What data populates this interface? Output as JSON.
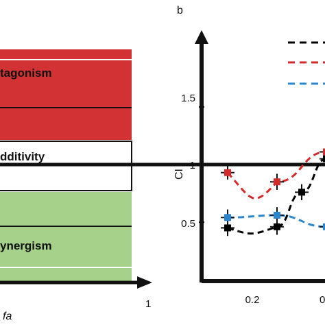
{
  "chart_data": [
    {
      "type": "area",
      "panel": "",
      "xlabel": "fa",
      "x_tick_labels": [
        "1"
      ],
      "regions": [
        {
          "name": "Antagonism",
          "label": "tagonism",
          "color": "#d23234"
        },
        {
          "name": "Additivity",
          "label": "dditivity",
          "color": "#ffffff"
        },
        {
          "name": "Synergism",
          "label": "ynergism",
          "color": "#a5d18a"
        }
      ]
    },
    {
      "type": "scatter",
      "panel": "b",
      "ylabel": "CI",
      "x_tick_labels": [
        "0.2",
        "0"
      ],
      "y_tick_labels": [
        "0.5",
        "1",
        "1.5"
      ],
      "ylim": [
        0.15,
        2.0
      ],
      "xlim": [
        0.0,
        0.55
      ],
      "reference_line": 1.0,
      "series": [
        {
          "color": "#000000",
          "x": [
            0.1,
            0.3,
            0.4,
            0.5
          ],
          "y": [
            0.45,
            0.46,
            0.76,
            1.05
          ],
          "err": [
            0.07,
            0.07,
            0.07,
            0.08
          ]
        },
        {
          "color": "#d42a2a",
          "x": [
            0.1,
            0.3,
            0.5
          ],
          "y": [
            0.93,
            0.85,
            1.11
          ],
          "err": [
            0.06,
            0.07,
            0.06
          ]
        },
        {
          "color": "#2a87cf",
          "x": [
            0.1,
            0.3,
            0.5
          ],
          "y": [
            0.54,
            0.56,
            0.46
          ],
          "err": [
            0.07,
            0.07,
            0.07
          ]
        }
      ]
    }
  ]
}
